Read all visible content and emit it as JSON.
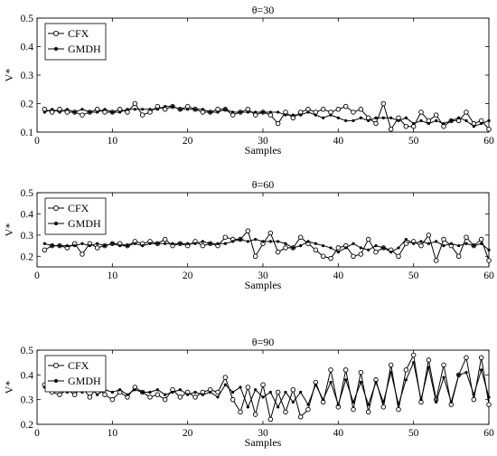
{
  "chart_data": [
    {
      "type": "line",
      "title": "θ=30",
      "xlabel": "Samples",
      "ylabel": "V*",
      "xlim": [
        0,
        60
      ],
      "ylim": [
        0.1,
        0.5
      ],
      "xticks": [
        0,
        10,
        20,
        30,
        40,
        50,
        60
      ],
      "yticks": [
        0.1,
        0.2,
        0.3,
        0.4,
        0.5
      ],
      "legend_position": "top-left",
      "grid": false,
      "series": [
        {
          "name": "CFX",
          "marker": "open-circle",
          "x": [
            1,
            2,
            3,
            4,
            5,
            6,
            7,
            8,
            9,
            10,
            11,
            12,
            13,
            14,
            15,
            16,
            17,
            18,
            19,
            20,
            21,
            22,
            23,
            24,
            25,
            26,
            27,
            28,
            29,
            30,
            31,
            32,
            33,
            34,
            35,
            36,
            37,
            38,
            39,
            40,
            41,
            42,
            43,
            44,
            45,
            46,
            47,
            48,
            49,
            50,
            51,
            52,
            53,
            54,
            55,
            56,
            57,
            58,
            59,
            60
          ],
          "values": [
            0.18,
            0.17,
            0.18,
            0.17,
            0.17,
            0.16,
            0.17,
            0.18,
            0.17,
            0.17,
            0.18,
            0.17,
            0.2,
            0.16,
            0.17,
            0.19,
            0.18,
            0.19,
            0.18,
            0.19,
            0.18,
            0.17,
            0.17,
            0.18,
            0.18,
            0.16,
            0.17,
            0.18,
            0.16,
            0.17,
            0.16,
            0.13,
            0.17,
            0.15,
            0.17,
            0.18,
            0.17,
            0.18,
            0.17,
            0.18,
            0.19,
            0.17,
            0.18,
            0.15,
            0.13,
            0.2,
            0.11,
            0.15,
            0.12,
            0.12,
            0.17,
            0.14,
            0.16,
            0.12,
            0.14,
            0.14,
            0.17,
            0.13,
            0.14,
            0.11
          ]
        },
        {
          "name": "GMDH",
          "marker": "filled-dot",
          "x": [
            1,
            2,
            3,
            4,
            5,
            6,
            7,
            8,
            9,
            10,
            11,
            12,
            13,
            14,
            15,
            16,
            17,
            18,
            19,
            20,
            21,
            22,
            23,
            24,
            25,
            26,
            27,
            28,
            29,
            30,
            31,
            32,
            33,
            34,
            35,
            36,
            37,
            38,
            39,
            40,
            41,
            42,
            43,
            44,
            45,
            46,
            47,
            48,
            49,
            50,
            51,
            52,
            53,
            54,
            55,
            56,
            57,
            58,
            59,
            60
          ],
          "values": [
            0.17,
            0.18,
            0.17,
            0.18,
            0.17,
            0.18,
            0.17,
            0.17,
            0.18,
            0.17,
            0.17,
            0.18,
            0.18,
            0.18,
            0.18,
            0.18,
            0.19,
            0.19,
            0.18,
            0.18,
            0.18,
            0.18,
            0.17,
            0.17,
            0.18,
            0.17,
            0.17,
            0.17,
            0.17,
            0.17,
            0.17,
            0.17,
            0.16,
            0.16,
            0.16,
            0.17,
            0.16,
            0.15,
            0.16,
            0.15,
            0.14,
            0.14,
            0.15,
            0.14,
            0.15,
            0.15,
            0.15,
            0.14,
            0.15,
            0.13,
            0.14,
            0.13,
            0.14,
            0.13,
            0.14,
            0.15,
            0.14,
            0.12,
            0.13,
            0.14
          ]
        }
      ]
    },
    {
      "type": "line",
      "title": "θ=60",
      "xlabel": "Samples",
      "ylabel": "V*",
      "xlim": [
        0,
        60
      ],
      "ylim": [
        0.15,
        0.5
      ],
      "xticks": [
        0,
        10,
        20,
        30,
        40,
        50,
        60
      ],
      "yticks": [
        0.2,
        0.3,
        0.4,
        0.5
      ],
      "legend_position": "top-left",
      "grid": false,
      "series": [
        {
          "name": "CFX",
          "marker": "open-circle",
          "x": [
            1,
            2,
            3,
            4,
            5,
            6,
            7,
            8,
            9,
            10,
            11,
            12,
            13,
            14,
            15,
            16,
            17,
            18,
            19,
            20,
            21,
            22,
            23,
            24,
            25,
            26,
            27,
            28,
            29,
            30,
            31,
            32,
            33,
            34,
            35,
            36,
            37,
            38,
            39,
            40,
            41,
            42,
            43,
            44,
            45,
            46,
            47,
            48,
            49,
            50,
            51,
            52,
            53,
            54,
            55,
            56,
            57,
            58,
            59,
            60
          ],
          "values": [
            0.23,
            0.25,
            0.25,
            0.24,
            0.26,
            0.21,
            0.26,
            0.24,
            0.25,
            0.26,
            0.26,
            0.25,
            0.27,
            0.26,
            0.27,
            0.26,
            0.28,
            0.25,
            0.26,
            0.25,
            0.27,
            0.25,
            0.26,
            0.25,
            0.29,
            0.28,
            0.28,
            0.32,
            0.2,
            0.26,
            0.31,
            0.22,
            0.24,
            0.24,
            0.29,
            0.26,
            0.23,
            0.2,
            0.19,
            0.24,
            0.25,
            0.2,
            0.21,
            0.28,
            0.22,
            0.24,
            0.23,
            0.2,
            0.26,
            0.27,
            0.25,
            0.3,
            0.18,
            0.28,
            0.25,
            0.2,
            0.29,
            0.25,
            0.28,
            0.18
          ]
        },
        {
          "name": "GMDH",
          "marker": "filled-dot",
          "x": [
            1,
            2,
            3,
            4,
            5,
            6,
            7,
            8,
            9,
            10,
            11,
            12,
            13,
            14,
            15,
            16,
            17,
            18,
            19,
            20,
            21,
            22,
            23,
            24,
            25,
            26,
            27,
            28,
            29,
            30,
            31,
            32,
            33,
            34,
            35,
            36,
            37,
            38,
            39,
            40,
            41,
            42,
            43,
            44,
            45,
            46,
            47,
            48,
            49,
            50,
            51,
            52,
            53,
            54,
            55,
            56,
            57,
            58,
            59,
            60
          ],
          "values": [
            0.26,
            0.25,
            0.25,
            0.25,
            0.25,
            0.26,
            0.25,
            0.26,
            0.25,
            0.26,
            0.25,
            0.25,
            0.26,
            0.25,
            0.26,
            0.26,
            0.26,
            0.26,
            0.26,
            0.26,
            0.26,
            0.27,
            0.26,
            0.26,
            0.26,
            0.27,
            0.28,
            0.27,
            0.28,
            0.27,
            0.27,
            0.27,
            0.26,
            0.24,
            0.25,
            0.27,
            0.26,
            0.25,
            0.24,
            0.22,
            0.24,
            0.26,
            0.24,
            0.23,
            0.25,
            0.24,
            0.22,
            0.24,
            0.28,
            0.26,
            0.27,
            0.26,
            0.27,
            0.25,
            0.26,
            0.25,
            0.26,
            0.25,
            0.26,
            0.23
          ]
        }
      ]
    },
    {
      "type": "line",
      "title": "θ=90",
      "xlabel": "Samples",
      "ylabel": "V*",
      "xlim": [
        0,
        60
      ],
      "ylim": [
        0.2,
        0.5
      ],
      "xticks": [
        0,
        10,
        20,
        30,
        40,
        50,
        60
      ],
      "yticks": [
        0.2,
        0.3,
        0.4,
        0.5
      ],
      "legend_position": "top-left",
      "grid": false,
      "series": [
        {
          "name": "CFX",
          "marker": "open-circle",
          "x": [
            1,
            2,
            3,
            4,
            5,
            6,
            7,
            8,
            9,
            10,
            11,
            12,
            13,
            14,
            15,
            16,
            17,
            18,
            19,
            20,
            21,
            22,
            23,
            24,
            25,
            26,
            27,
            28,
            29,
            30,
            31,
            32,
            33,
            34,
            35,
            36,
            37,
            38,
            39,
            40,
            41,
            42,
            43,
            44,
            45,
            46,
            47,
            48,
            49,
            50,
            51,
            52,
            53,
            54,
            55,
            56,
            57,
            58,
            59,
            60
          ],
          "values": [
            0.36,
            0.33,
            0.32,
            0.34,
            0.32,
            0.35,
            0.31,
            0.35,
            0.32,
            0.3,
            0.33,
            0.31,
            0.35,
            0.33,
            0.31,
            0.32,
            0.3,
            0.34,
            0.31,
            0.33,
            0.31,
            0.33,
            0.34,
            0.33,
            0.39,
            0.3,
            0.25,
            0.35,
            0.24,
            0.36,
            0.22,
            0.33,
            0.25,
            0.34,
            0.23,
            0.26,
            0.37,
            0.29,
            0.42,
            0.27,
            0.42,
            0.26,
            0.41,
            0.25,
            0.38,
            0.27,
            0.44,
            0.26,
            0.42,
            0.48,
            0.29,
            0.46,
            0.3,
            0.44,
            0.28,
            0.4,
            0.47,
            0.3,
            0.47,
            0.28
          ]
        },
        {
          "name": "GMDH",
          "marker": "filled-dot",
          "x": [
            1,
            2,
            3,
            4,
            5,
            6,
            7,
            8,
            9,
            10,
            11,
            12,
            13,
            14,
            15,
            16,
            17,
            18,
            19,
            20,
            21,
            22,
            23,
            24,
            25,
            26,
            27,
            28,
            29,
            30,
            31,
            32,
            33,
            34,
            35,
            36,
            37,
            38,
            39,
            40,
            41,
            42,
            43,
            44,
            45,
            46,
            47,
            48,
            49,
            50,
            51,
            52,
            53,
            54,
            55,
            56,
            57,
            58,
            59,
            60
          ],
          "values": [
            0.35,
            0.34,
            0.34,
            0.33,
            0.34,
            0.33,
            0.35,
            0.32,
            0.34,
            0.33,
            0.34,
            0.32,
            0.34,
            0.33,
            0.33,
            0.34,
            0.32,
            0.33,
            0.34,
            0.32,
            0.33,
            0.32,
            0.33,
            0.31,
            0.36,
            0.33,
            0.35,
            0.27,
            0.34,
            0.31,
            0.33,
            0.27,
            0.33,
            0.29,
            0.33,
            0.28,
            0.36,
            0.3,
            0.37,
            0.28,
            0.38,
            0.29,
            0.37,
            0.28,
            0.37,
            0.29,
            0.41,
            0.28,
            0.38,
            0.45,
            0.3,
            0.43,
            0.29,
            0.39,
            0.29,
            0.4,
            0.41,
            0.32,
            0.42,
            0.31
          ]
        }
      ]
    }
  ]
}
